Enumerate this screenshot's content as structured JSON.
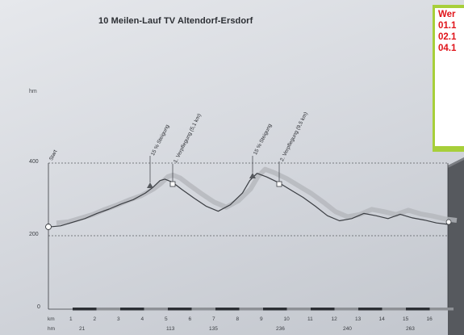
{
  "title": "10 Meilen-Lauf TV Altendorf-Ersdorf",
  "y_unit": "hm",
  "y_ticks": [
    "400",
    "200",
    "0"
  ],
  "annotations": {
    "start": "Start",
    "climb1": "15 % Steigung",
    "aid1": "1. Verpflegung (5,1 km)",
    "climb2": "15 % Steigung",
    "aid2": "2. Verpflegung (9,5 km)"
  },
  "km_label": "km",
  "km_ticks": [
    "1",
    "2",
    "3",
    "4",
    "5",
    "6",
    "7",
    "8",
    "9",
    "10",
    "11",
    "12",
    "13",
    "14",
    "15",
    "16"
  ],
  "hm_label": "hm",
  "hm_ticks": [
    "21",
    "113",
    "135",
    "236",
    "240",
    "263"
  ],
  "notice": {
    "lines": [
      "Wer",
      "01.1",
      "02.1",
      "04.1"
    ],
    "border_color": "#a7cf3a",
    "text_color": "#e0141a"
  },
  "chart_data": {
    "type": "area",
    "title": "10 Meilen-Lauf TV Altendorf-Ersdorf",
    "xlabel": "km",
    "ylabel": "hm",
    "ylim": [
      0,
      400
    ],
    "xlim": [
      0,
      16.5
    ],
    "grid_lines_y": [
      200,
      400
    ],
    "x": [
      0,
      0.5,
      1,
      1.5,
      2,
      2.5,
      3,
      3.5,
      4,
      4.3,
      4.6,
      4.8,
      5.1,
      5.5,
      6,
      6.5,
      7,
      7.5,
      8,
      8.3,
      8.6,
      9,
      9.5,
      10,
      10.5,
      11,
      11.5,
      12,
      12.5,
      13,
      13.5,
      14,
      14.5,
      15,
      15.5,
      16,
      16.5
    ],
    "y": [
      225,
      228,
      238,
      248,
      262,
      274,
      288,
      300,
      318,
      333,
      352,
      356,
      348,
      328,
      304,
      282,
      268,
      286,
      318,
      352,
      372,
      362,
      346,
      326,
      306,
      282,
      256,
      242,
      248,
      262,
      256,
      248,
      260,
      250,
      244,
      236,
      232
    ]
  }
}
